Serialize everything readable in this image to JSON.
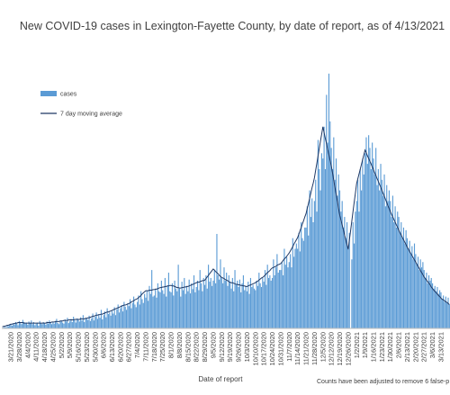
{
  "chart_data": {
    "type": "bar",
    "title": "New COVID-19 cases in Lexington-Fayette County, by date of report, as of 4/13/2021",
    "x_label": "Date of report",
    "footnote": "Counts have been adjusted to remove 6 false-p",
    "ylim": [
      0,
      500
    ],
    "categories": [
      null,
      null,
      null,
      null,
      null,
      null,
      null,
      "3/21/2020",
      null,
      null,
      null,
      null,
      null,
      null,
      "3/28/2020",
      null,
      null,
      null,
      null,
      null,
      null,
      "4/4/2020",
      null,
      null,
      null,
      null,
      null,
      null,
      "4/11/2020",
      null,
      null,
      null,
      null,
      null,
      null,
      "4/18/2020",
      null,
      null,
      null,
      null,
      null,
      null,
      "4/25/2020",
      null,
      null,
      null,
      null,
      null,
      null,
      "5/2/2020",
      null,
      null,
      null,
      null,
      null,
      null,
      "5/9/2020",
      null,
      null,
      null,
      null,
      null,
      null,
      "5/16/2020",
      null,
      null,
      null,
      null,
      null,
      null,
      "5/23/2020",
      null,
      null,
      null,
      null,
      null,
      null,
      "5/30/2020",
      null,
      null,
      null,
      null,
      null,
      null,
      "6/6/2020",
      null,
      null,
      null,
      null,
      null,
      null,
      "6/13/2020",
      null,
      null,
      null,
      null,
      null,
      null,
      "6/20/2020",
      null,
      null,
      null,
      null,
      null,
      null,
      "6/27/2020",
      null,
      null,
      null,
      null,
      null,
      null,
      "7/4/2020",
      null,
      null,
      null,
      null,
      null,
      null,
      "7/11/2020",
      null,
      null,
      null,
      null,
      null,
      null,
      "7/18/2020",
      null,
      null,
      null,
      null,
      null,
      null,
      "7/25/2020",
      null,
      null,
      null,
      null,
      null,
      null,
      "8/1/2020",
      null,
      null,
      null,
      null,
      null,
      null,
      "8/8/2020",
      null,
      null,
      null,
      null,
      null,
      null,
      "8/15/2020",
      null,
      null,
      null,
      null,
      null,
      null,
      "8/22/2020",
      null,
      null,
      null,
      null,
      null,
      null,
      "8/29/2020",
      null,
      null,
      null,
      null,
      null,
      null,
      "9/5/2020",
      null,
      null,
      null,
      null,
      null,
      null,
      "9/12/2020",
      null,
      null,
      null,
      null,
      null,
      null,
      "9/19/2020",
      null,
      null,
      null,
      null,
      null,
      null,
      "9/26/2020",
      null,
      null,
      null,
      null,
      null,
      null,
      "10/3/2020",
      null,
      null,
      null,
      null,
      null,
      null,
      "10/10/2020",
      null,
      null,
      null,
      null,
      null,
      null,
      "10/17/2020",
      null,
      null,
      null,
      null,
      null,
      null,
      "10/24/2020",
      null,
      null,
      null,
      null,
      null,
      null,
      "10/31/2020",
      null,
      null,
      null,
      null,
      null,
      null,
      "11/7/2020",
      null,
      null,
      null,
      null,
      null,
      null,
      "11/14/2020",
      null,
      null,
      null,
      null,
      null,
      null,
      "11/21/2020",
      null,
      null,
      null,
      null,
      null,
      null,
      "11/28/2020",
      null,
      null,
      null,
      null,
      null,
      null,
      "12/5/2020",
      null,
      null,
      null,
      null,
      null,
      null,
      "12/12/2020",
      null,
      null,
      null,
      null,
      null,
      null,
      "12/19/2020",
      null,
      null,
      null,
      null,
      null,
      null,
      "12/26/2020",
      null,
      null,
      null,
      null,
      null,
      null,
      "1/2/2021",
      null,
      null,
      null,
      null,
      null,
      null,
      "1/9/2021",
      null,
      null,
      null,
      null,
      null,
      null,
      "1/16/2021",
      null,
      null,
      null,
      null,
      null,
      null,
      "1/23/2021",
      null,
      null,
      null,
      null,
      null,
      null,
      "1/30/2021",
      null,
      null,
      null,
      null,
      null,
      null,
      "2/6/2021",
      null,
      null,
      null,
      null,
      null,
      null,
      "2/13/2021",
      null,
      null,
      null,
      null,
      null,
      null,
      "2/20/2021",
      null,
      null,
      null,
      null,
      null,
      null,
      "2/27/2021",
      null,
      null,
      null,
      null,
      null,
      null,
      "3/6/2021",
      null,
      null,
      null,
      null,
      null,
      null,
      "3/13/2021",
      null,
      null,
      null,
      null,
      null,
      null,
      null
    ],
    "series": [
      {
        "name": "cases",
        "type": "bar",
        "color": "#5b9bd5",
        "values": [
          1,
          2,
          3,
          2,
          5,
          4,
          6,
          8,
          5,
          10,
          7,
          12,
          9,
          6,
          14,
          10,
          8,
          16,
          12,
          9,
          11,
          7,
          13,
          10,
          15,
          8,
          12,
          6,
          9,
          11,
          5,
          14,
          10,
          8,
          12,
          10,
          7,
          13,
          9,
          15,
          11,
          8,
          12,
          9,
          14,
          18,
          10,
          8,
          13,
          15,
          11,
          9,
          17,
          13,
          20,
          10,
          14,
          18,
          12,
          22,
          16,
          11,
          19,
          17,
          13,
          21,
          15,
          25,
          12,
          18,
          20,
          16,
          24,
          14,
          19,
          28,
          15,
          22,
          30,
          18,
          26,
          20,
          35,
          17,
          25,
          32,
          21,
          38,
          27,
          30,
          24,
          33,
          28,
          40,
          25,
          36,
          45,
          30,
          38,
          44,
          32,
          50,
          41,
          35,
          47,
          42,
          55,
          38,
          48,
          60,
          45,
          40,
          50,
          62,
          45,
          70,
          55,
          48,
          65,
          58,
          72,
          52,
          80,
          65,
          110,
          60,
          62,
          75,
          58,
          85,
          70,
          68,
          90,
          72,
          65,
          95,
          60,
          80,
          105,
          70,
          68,
          85,
          62,
          90,
          75,
          70,
          120,
          75,
          60,
          88,
          72,
          95,
          65,
          80,
          70,
          92,
          66,
          85,
          74,
          100,
          68,
          78,
          90,
          72,
          110,
          85,
          70,
          95,
          82,
          100,
          75,
          120,
          88,
          95,
          80,
          90,
          110,
          85,
          178,
          100,
          92,
          130,
          95,
          85,
          115,
          90,
          105,
          80,
          100,
          88,
          75,
          95,
          70,
          110,
          82,
          90,
          78,
          92,
          68,
          85,
          100,
          72,
          80,
          70,
          88,
          65,
          95,
          78,
          82,
          75,
          72,
          90,
          80,
          105,
          85,
          78,
          95,
          88,
          110,
          82,
          120,
          95,
          100,
          90,
          95,
          130,
          100,
          115,
          140,
          105,
          110,
          110,
          125,
          100,
          150,
          120,
          135,
          115,
          125,
          140,
          115,
          170,
          135,
          150,
          160,
          150,
          180,
          145,
          200,
          170,
          165,
          190,
          190,
          230,
          175,
          260,
          210,
          245,
          200,
          240,
          280,
          220,
          355,
          300,
          260,
          330,
          320,
          380,
          300,
          440,
          350,
          480,
          390,
          340,
          300,
          360,
          280,
          320,
          250,
          290,
          260,
          220,
          240,
          190,
          210,
          170,
          200,
          150,
          180,
          0,
          130,
          200,
          160,
          220,
          240,
          280,
          220,
          300,
          260,
          320,
          290,
          330,
          360,
          310,
          364,
          340,
          300,
          350,
          320,
          290,
          340,
          270,
          300,
          260,
          310,
          280,
          250,
          290,
          230,
          270,
          240,
          260,
          240,
          210,
          250,
          200,
          230,
          190,
          220,
          210,
          180,
          200,
          170,
          190,
          160,
          185,
          170,
          150,
          165,
          140,
          155,
          130,
          160,
          140,
          120,
          135,
          110,
          130,
          115,
          125,
          110,
          95,
          105,
          85,
          100,
          90,
          95,
          85,
          75,
          80,
          70,
          78,
          65,
          72,
          68,
          55,
          62,
          50,
          60,
          48,
          58,
          45
        ]
      },
      {
        "name": "7 day moving average",
        "type": "line",
        "color": "#1f3864",
        "values": [
          3,
          4,
          4,
          5,
          6,
          6,
          7,
          8,
          8,
          9,
          9,
          10,
          10,
          11,
          11,
          11,
          11,
          11,
          10,
          10,
          10,
          10,
          10,
          10,
          10,
          10,
          10,
          10,
          10,
          10,
          10,
          10,
          10,
          10,
          10,
          10,
          10,
          11,
          11,
          11,
          11,
          12,
          12,
          12,
          13,
          13,
          13,
          13,
          14,
          14,
          14,
          15,
          15,
          15,
          15,
          16,
          16,
          16,
          16,
          16,
          17,
          17,
          17,
          17,
          17,
          18,
          18,
          18,
          18,
          19,
          19,
          20,
          20,
          21,
          22,
          23,
          23,
          24,
          25,
          25,
          26,
          26,
          27,
          27,
          28,
          29,
          30,
          31,
          31,
          32,
          33,
          34,
          35,
          36,
          37,
          38,
          39,
          40,
          41,
          42,
          43,
          44,
          44,
          45,
          46,
          47,
          48,
          50,
          51,
          52,
          54,
          55,
          56,
          58,
          60,
          62,
          65,
          67,
          69,
          71,
          71,
          71,
          72,
          72,
          72,
          73,
          73,
          74,
          74,
          75,
          76,
          77,
          77,
          78,
          78,
          79,
          79,
          80,
          80,
          81,
          81,
          80,
          80,
          79,
          78,
          77,
          77,
          76,
          76,
          77,
          77,
          78,
          78,
          79,
          79,
          80,
          81,
          82,
          83,
          84,
          85,
          86,
          87,
          87,
          88,
          89,
          90,
          90,
          91,
          94,
          97,
          100,
          103,
          106,
          109,
          112,
          110,
          107,
          105,
          103,
          100,
          98,
          96,
          95,
          94,
          92,
          91,
          90,
          88,
          87,
          86,
          86,
          85,
          84,
          83,
          83,
          82,
          82,
          81,
          81,
          80,
          80,
          79,
          79,
          80,
          81,
          82,
          83,
          84,
          85,
          86,
          88,
          89,
          91,
          93,
          95,
          96,
          98,
          100,
          103,
          105,
          107,
          109,
          112,
          114,
          115,
          116,
          117,
          119,
          120,
          121,
          122,
          125,
          128,
          131,
          133,
          136,
          139,
          142,
          146,
          150,
          154,
          159,
          163,
          167,
          171,
          177,
          184,
          190,
          197,
          203,
          210,
          216,
          226,
          235,
          245,
          255,
          265,
          274,
          284,
          298,
          311,
          325,
          339,
          353,
          366,
          380,
          369,
          358,
          348,
          337,
          327,
          316,
          306,
          293,
          279,
          266,
          253,
          240,
          226,
          213,
          204,
          195,
          186,
          176,
          167,
          158,
          149,
          167,
          184,
          202,
          220,
          238,
          255,
          273,
          282,
          291,
          300,
          309,
          318,
          327,
          336,
          331,
          325,
          320,
          315,
          310,
          304,
          299,
          293,
          288,
          282,
          277,
          271,
          266,
          260,
          254,
          249,
          243,
          237,
          231,
          226,
          220,
          215,
          210,
          205,
          200,
          195,
          190,
          185,
          180,
          176,
          171,
          167,
          162,
          158,
          153,
          149,
          145,
          141,
          137,
          133,
          129,
          125,
          121,
          117,
          113,
          109,
          105,
          101,
          97,
          94,
          91,
          88,
          85,
          82,
          78,
          75,
          72,
          70,
          67,
          65,
          62,
          60,
          57,
          55,
          54,
          52,
          50,
          49,
          47,
          45
        ]
      }
    ]
  }
}
